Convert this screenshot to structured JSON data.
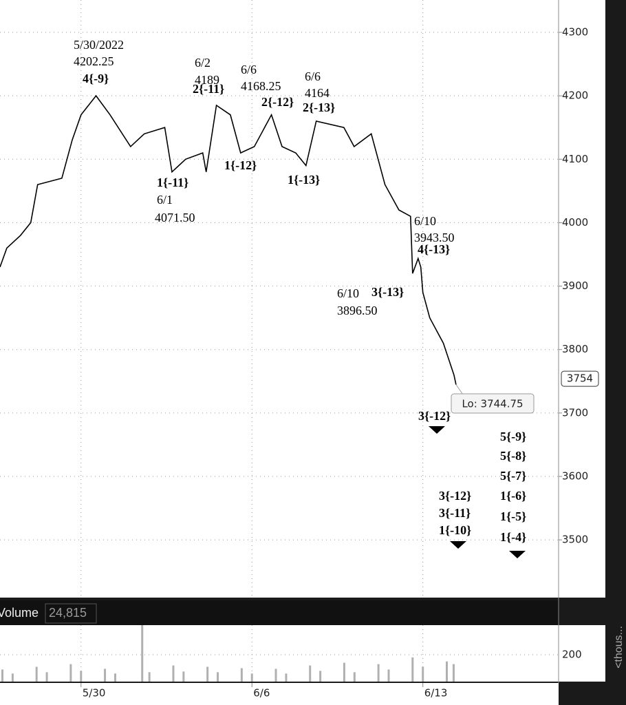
{
  "chart_data": {
    "type": "line",
    "series": [
      {
        "color": "#000000",
        "x": [
          -2.37,
          -2.17,
          -1.77,
          -1.47,
          -1.27,
          -0.56,
          -0.26,
          0,
          0.44,
          0.85,
          1.45,
          1.85,
          2.45,
          2.66,
          3.06,
          3.56,
          3.66,
          3.96,
          4.37,
          4.67,
          5.07,
          5.57,
          5.88,
          6.28,
          6.58,
          6.88,
          7.69,
          7.99,
          8.49,
          8.89,
          9.3,
          9.64,
          9.7,
          9.86,
          9.94,
          10.0,
          10.2,
          10.6,
          10.91,
          10.97
        ],
        "values": [
          3930,
          3960,
          3980,
          4000,
          4060,
          4070,
          4130,
          4170,
          4200,
          4170,
          4120,
          4140,
          4150,
          4080,
          4100,
          4110,
          4080,
          4185,
          4170,
          4110,
          4120,
          4170,
          4120,
          4110,
          4090,
          4160,
          4150,
          4120,
          4140,
          4060,
          4020,
          4010,
          3920,
          3943.5,
          3930,
          3890,
          3850,
          3810,
          3760,
          3744.75
        ]
      }
    ],
    "xlim": [
      -2.37,
      13.97
    ],
    "xticks": [
      {
        "value": 0,
        "label": "5/30"
      },
      {
        "value": 5,
        "label": "6/6"
      },
      {
        "value": 10,
        "label": "6/13"
      }
    ],
    "ylim": [
      3409,
      4351
    ],
    "yticks": [
      4300,
      4200,
      4100,
      4000,
      3900,
      3800,
      3700,
      3600,
      3500
    ],
    "grid": true,
    "last_price": 3754,
    "low_label": "Lo: 3744.75",
    "annotations": [
      "5/30/2022",
      "4202.25",
      "4{-9}",
      "6/2",
      "4189",
      "2{-11}",
      "6/6",
      "4168.25",
      "2{-12}",
      "6/6",
      "4164",
      "2{-13}",
      "1{-11}",
      "6/1",
      "4071.50",
      "1{-12}",
      "1{-13}",
      "6/10",
      "3943.50",
      "4{-13}",
      "6/10",
      "3896.50",
      "3{-13}",
      "3{-12}",
      "3{-12}",
      "3{-11}",
      "1{-10}",
      "5{-9}",
      "5{-8}",
      "5{-7}",
      "1{-6}",
      "1{-5}",
      "1{-4}"
    ],
    "volume": {
      "title": "Volume",
      "last": "24,815",
      "color": "#b0b0b0",
      "x": [
        -2.3,
        -2.0,
        -1.3,
        -1.0,
        -0.3,
        0,
        0.7,
        1.0,
        1.79,
        2.0,
        2.7,
        3.0,
        3.7,
        4.0,
        4.7,
        5.0,
        5.7,
        6.0,
        6.7,
        7.0,
        7.7,
        8.0,
        8.7,
        9.0,
        9.7,
        10.0,
        10.7,
        10.9
      ],
      "values": [
        90,
        60,
        110,
        70,
        130,
        80,
        95,
        60,
        420,
        70,
        120,
        75,
        110,
        70,
        100,
        60,
        95,
        60,
        120,
        80,
        140,
        70,
        130,
        90,
        180,
        110,
        150,
        130
      ],
      "ylim": [
        0,
        420
      ],
      "yticks": [
        200
      ]
    },
    "side_label": "<thous..."
  }
}
